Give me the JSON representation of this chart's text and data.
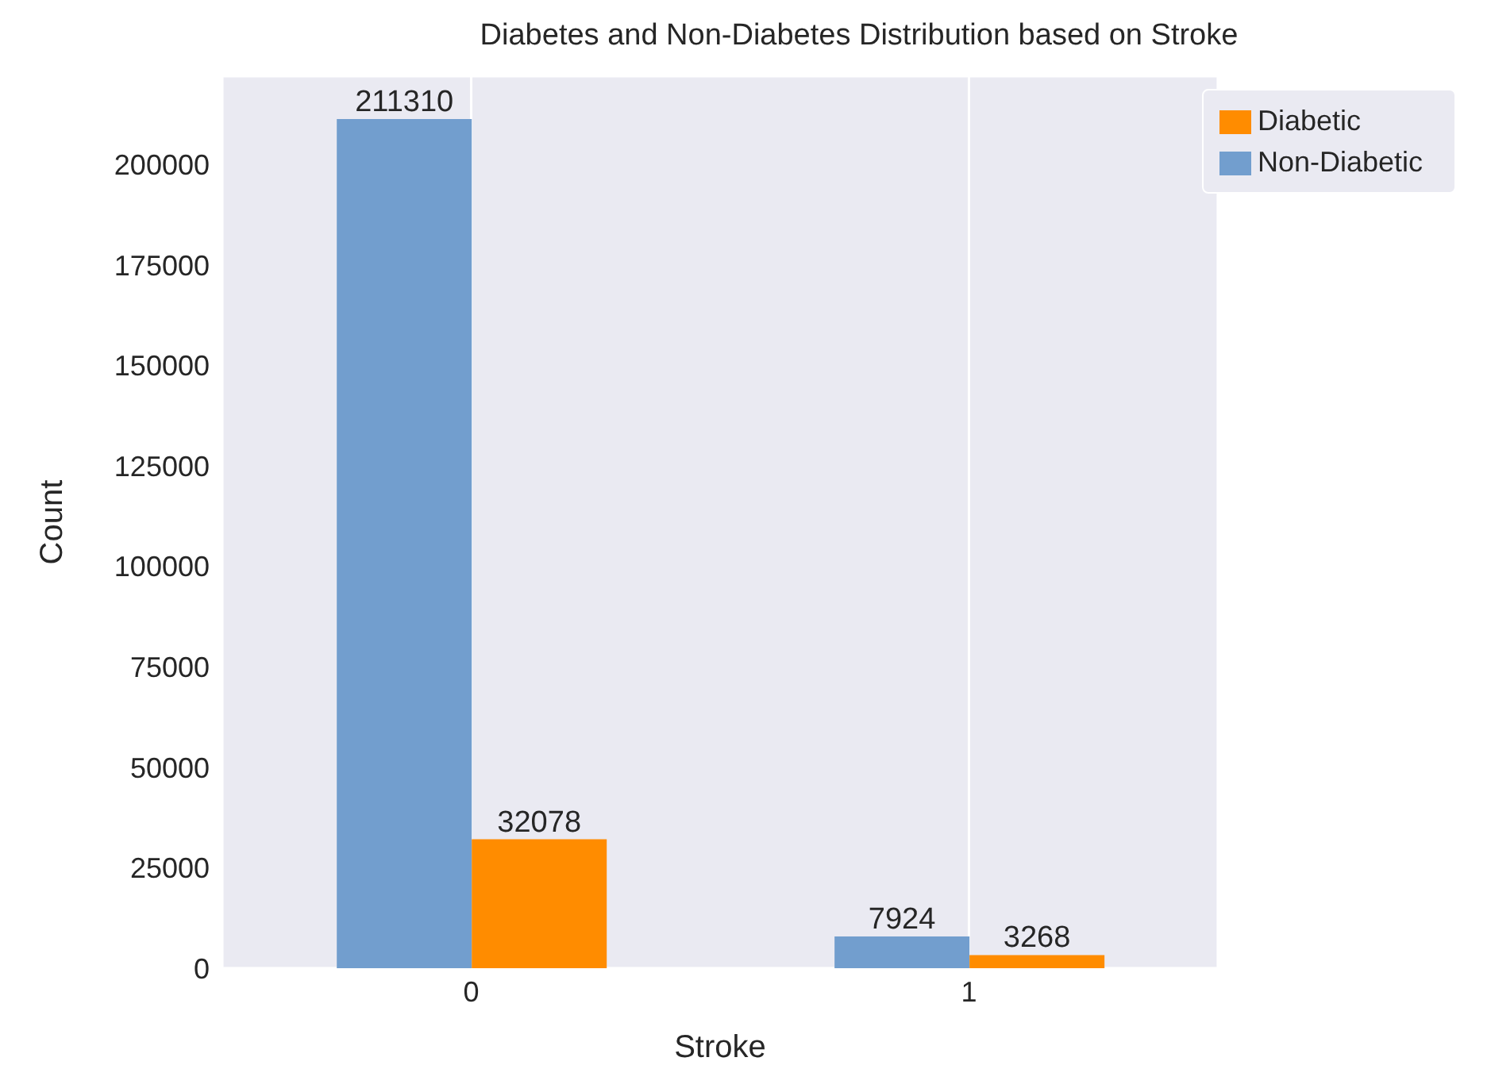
{
  "chart_data": {
    "type": "bar",
    "title": "Diabetes and Non-Diabetes Distribution based on Stroke",
    "xlabel": "Stroke",
    "ylabel": "Count",
    "categories": [
      "0",
      "1"
    ],
    "series": [
      {
        "name": "Non-Diabetic",
        "color": "#729ece",
        "values": [
          211310,
          7924
        ]
      },
      {
        "name": "Diabetic",
        "color": "#ff8c00",
        "values": [
          32078,
          3268
        ]
      }
    ],
    "ylim": [
      0,
      222000
    ],
    "yticks": [
      0,
      25000,
      50000,
      75000,
      100000,
      125000,
      150000,
      175000,
      200000
    ],
    "grid": true,
    "legend": "top right",
    "data_labels": true
  }
}
